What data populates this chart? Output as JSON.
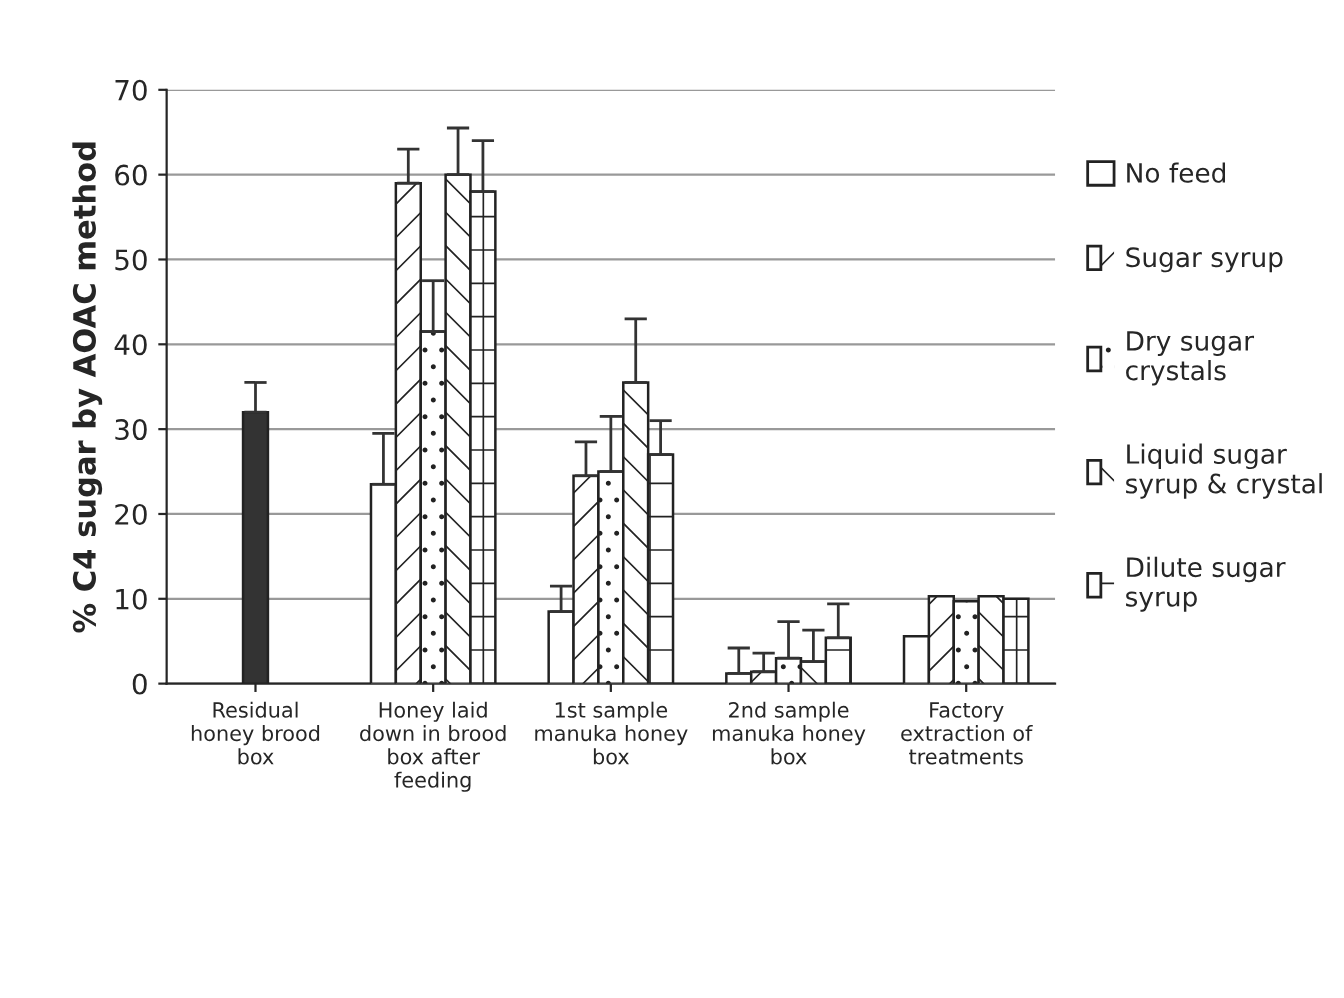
{
  "chart_data": {
    "type": "bar",
    "ylabel": "% C4 sugar by AOAC method",
    "categories": [
      "Residual honey brood box",
      "Honey laid down in brood box after feeding",
      "1st sample manuka honey box",
      "2nd sample manuka honey box",
      "Factory extraction of treatments"
    ],
    "series": [
      {
        "name": "No feed",
        "color": "#ffffff",
        "values": [
          null,
          23.5,
          8.5,
          1.2,
          5.6
        ],
        "errors": [
          null,
          [
            23.5,
            29.5
          ],
          [
            8.5,
            11.5
          ],
          [
            1.2,
            4.2
          ],
          null
        ]
      },
      {
        "name": "Sugar syrup",
        "color": "#ffffff",
        "values": [
          null,
          59,
          24.5,
          1.4,
          10.3
        ],
        "errors": [
          null,
          [
            59,
            63
          ],
          [
            24.5,
            28.5
          ],
          [
            1.4,
            3.6
          ],
          null
        ]
      },
      {
        "name": "Dry sugar crystals",
        "color": "#ffffff",
        "values": [
          null,
          41.5,
          25,
          3.0,
          9.7
        ],
        "errors": [
          null,
          [
            41.5,
            47.5
          ],
          [
            25,
            31.5
          ],
          [
            3.0,
            7.3
          ],
          null
        ]
      },
      {
        "name": "Liquid sugar syrup & crystal",
        "color": "#ffffff",
        "values": [
          null,
          60,
          35.5,
          2.6,
          10.3
        ],
        "errors": [
          null,
          [
            60,
            65.5
          ],
          [
            35.5,
            43
          ],
          [
            2.6,
            6.3
          ],
          null
        ]
      },
      {
        "name": "Dilute sugar syrup",
        "color": "#ffffff",
        "values": [
          null,
          58,
          27,
          5.4,
          10
        ],
        "errors": [
          null,
          [
            58,
            64
          ],
          [
            27,
            31
          ],
          [
            5.4,
            9.4
          ],
          null
        ]
      },
      {
        "color": "#333333",
        "values": [
          32,
          null,
          null,
          null,
          null
        ],
        "errors": [
          [
            32,
            35.5
          ],
          null,
          null,
          null,
          null
        ]
      }
    ],
    "ylim": [
      0,
      70
    ],
    "yticks": [
      0,
      10,
      20,
      30,
      40,
      50,
      60,
      70
    ],
    "grid": "y",
    "legend": "right"
  }
}
